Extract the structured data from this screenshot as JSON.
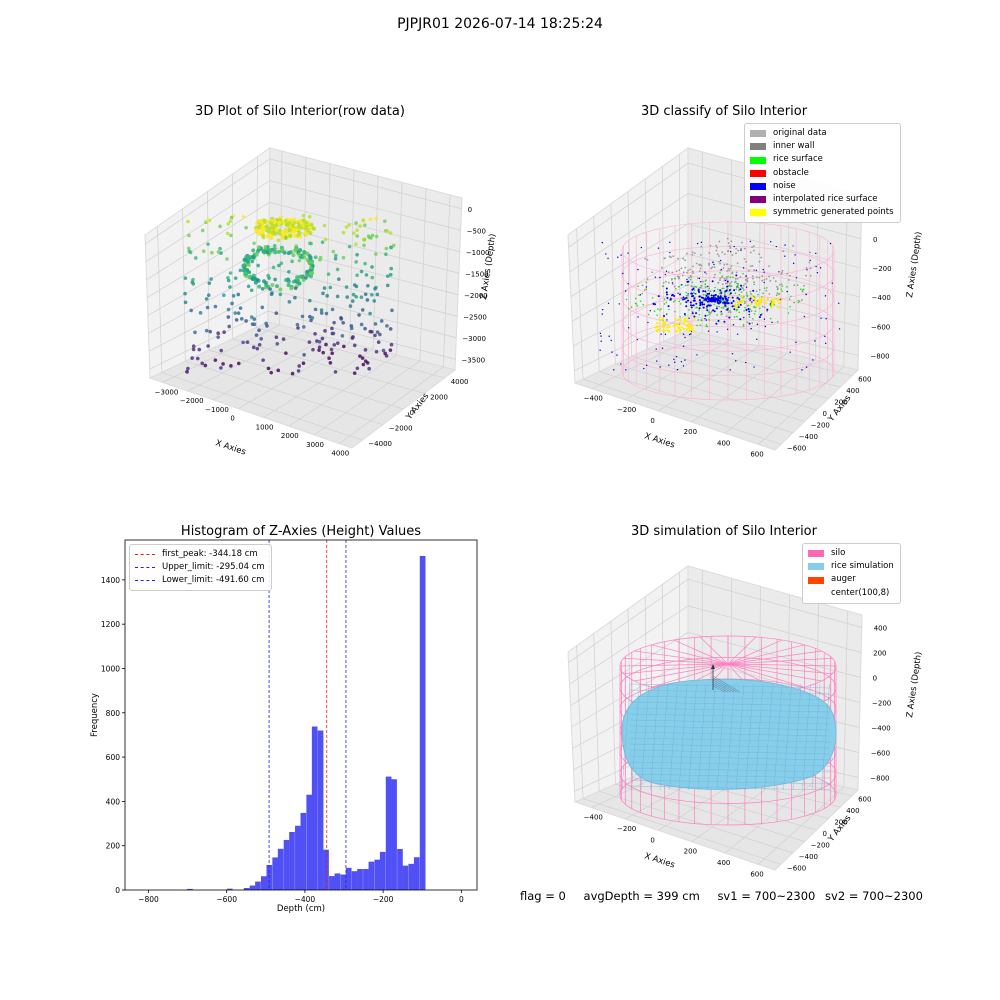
{
  "suptitle": "PJPJR01 2026-07-14 18:25:24",
  "status": {
    "flag": "flag = 0",
    "avg_depth": "avgDepth = 399 cm",
    "sv1": "sv1 = 700~2300",
    "sv2": "sv2 = 700~2300"
  },
  "chart_data": [
    {
      "type": "scatter3d",
      "title": "3D Plot of Silo Interior(row data)",
      "xlabel": "X Axies",
      "ylabel": "Y Axies",
      "zlabel": "Z Axies (Depth)",
      "x_ticks": [
        "−3000",
        "−2000",
        "−1000",
        "0",
        "1000",
        "2000",
        "3000",
        "4000"
      ],
      "y_ticks": [
        "−4000",
        "−2000",
        "0",
        "2000",
        "4000"
      ],
      "z_ticks": [
        "0",
        "−500",
        "−1000",
        "−1500",
        "−2000",
        "−2500",
        "−3000",
        "−3500"
      ],
      "xlim": [
        -3200,
        4200
      ],
      "ylim": [
        -4200,
        4200
      ],
      "zlim": [
        -3900,
        0
      ],
      "colormap": "viridis"
    },
    {
      "type": "scatter3d",
      "title": "3D classify of Silo Interior",
      "xlabel": "X Axies",
      "ylabel": "Y Axies",
      "zlabel": "Z Axies (Depth)",
      "x_ticks": [
        "−400",
        "−200",
        "0",
        "200",
        "400",
        "600"
      ],
      "y_ticks": [
        "−600",
        "−400",
        "−200",
        "0",
        "200",
        "400",
        "600"
      ],
      "z_ticks": [
        "200",
        "0",
        "−200",
        "−400",
        "−600",
        "−800"
      ],
      "legend": [
        {
          "label": "original data",
          "color": "#b0b0b0"
        },
        {
          "label": "inner wall",
          "color": "#808080"
        },
        {
          "label": "rice surface",
          "color": "#00ff00"
        },
        {
          "label": "obstacle",
          "color": "#ff0000"
        },
        {
          "label": "noise",
          "color": "#0000ff"
        },
        {
          "label": "interpolated rice surface",
          "color": "#800080"
        },
        {
          "label": "symmetric generated points",
          "color": "#ffff00"
        }
      ]
    },
    {
      "type": "bar",
      "title": "Histogram of Z-Axies (Height) Values",
      "xlabel": "Depth (cm)",
      "ylabel": "Frequency",
      "xlim": [
        -860,
        40
      ],
      "ylim": [
        0,
        1580
      ],
      "x_ticks": [
        -800,
        -600,
        -400,
        -200,
        0
      ],
      "x_tick_labels": [
        "−800",
        "−600",
        "−400",
        "−200",
        "0"
      ],
      "y_ticks": [
        0,
        200,
        400,
        600,
        800,
        1000,
        1200,
        1400
      ],
      "bar_color": "#5050f5",
      "bin_width": 14.5,
      "bins": [
        [
          -694,
          5
        ],
        [
          -592,
          6
        ],
        [
          -549,
          9
        ],
        [
          -534,
          20
        ],
        [
          -520,
          38
        ],
        [
          -505,
          62
        ],
        [
          -491,
          113
        ],
        [
          -476,
          147
        ],
        [
          -462,
          186
        ],
        [
          -447,
          226
        ],
        [
          -433,
          262
        ],
        [
          -418,
          290
        ],
        [
          -404,
          348
        ],
        [
          -389,
          430
        ],
        [
          -375,
          738
        ],
        [
          -360,
          720
        ],
        [
          -346,
          182
        ],
        [
          -331,
          63
        ],
        [
          -317,
          75
        ],
        [
          -302,
          70
        ],
        [
          -288,
          100
        ],
        [
          -273,
          85
        ],
        [
          -259,
          95
        ],
        [
          -244,
          95
        ],
        [
          -230,
          128
        ],
        [
          -215,
          137
        ],
        [
          -201,
          172
        ],
        [
          -186,
          512
        ],
        [
          -172,
          500
        ],
        [
          -157,
          185
        ],
        [
          -143,
          110
        ],
        [
          -128,
          118
        ],
        [
          -114,
          148
        ],
        [
          -99,
          1508
        ]
      ],
      "lines": [
        {
          "label": "first_peak: -344.18 cm",
          "x": -344.18,
          "color": "#e02020"
        },
        {
          "label": "Upper_limit: -295.04 cm",
          "x": -295.04,
          "color": "#2020e0"
        },
        {
          "label": "Lower_limit: -491.60 cm",
          "x": -491.6,
          "color": "#2020e0"
        }
      ]
    },
    {
      "type": "surface3d",
      "title": "3D simulation of Silo Interior",
      "xlabel": "X Axies",
      "ylabel": "Y Axies",
      "zlabel": "Z Axies (Depth)",
      "x_ticks": [
        "−400",
        "−200",
        "0",
        "200",
        "400",
        "600"
      ],
      "y_ticks": [
        "−600",
        "−400",
        "−200",
        "0",
        "200",
        "400",
        "600"
      ],
      "z_ticks": [
        "400",
        "200",
        "0",
        "−200",
        "−400",
        "−600",
        "−800"
      ],
      "legend": [
        {
          "label": "silo",
          "color": "#ff69b4"
        },
        {
          "label": "rice simulation",
          "color": "#87ceeb"
        },
        {
          "label": "auger",
          "color": "#ff4500"
        },
        {
          "label": "center(100,8)",
          "color": ""
        }
      ]
    }
  ]
}
